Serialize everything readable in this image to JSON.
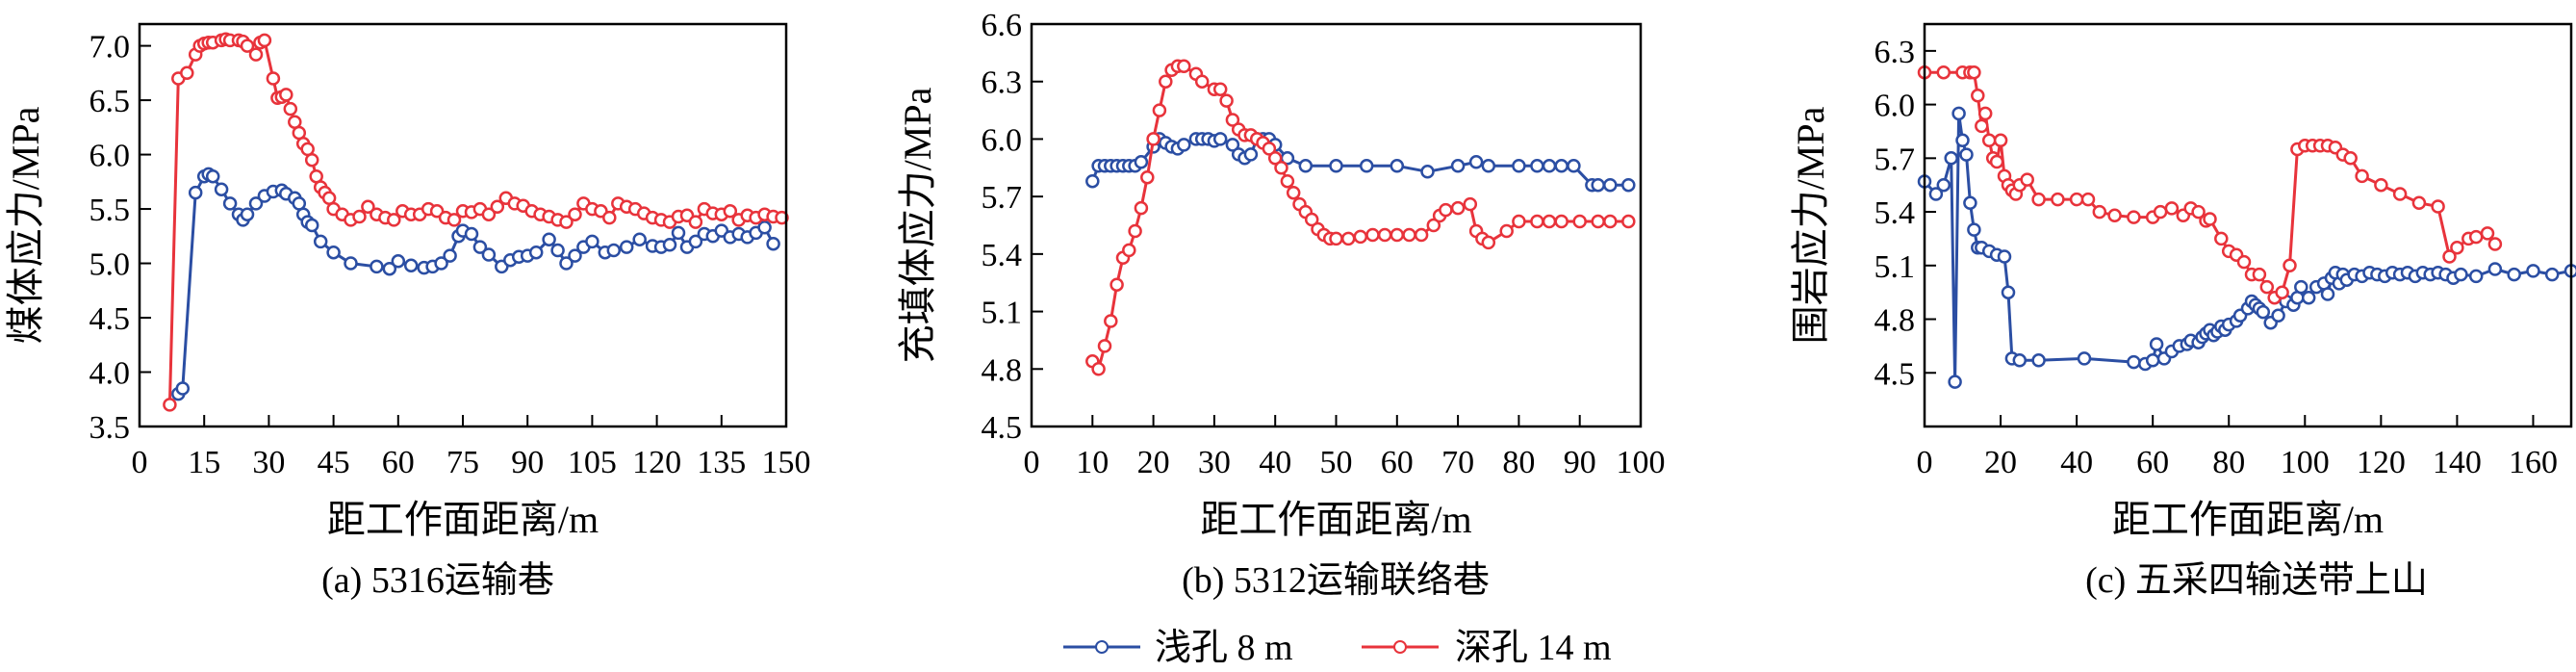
{
  "colors": {
    "shallow": "#2b4ea3",
    "deep": "#e8333b",
    "axis": "#000000"
  },
  "legend": [
    {
      "label": "浅孔 8 m",
      "color": "#2b4ea3"
    },
    {
      "label": "深孔 14 m",
      "color": "#e8333b"
    }
  ],
  "chart_data": [
    {
      "type": "line",
      "caption": "(a) 5316运输巷",
      "xlabel": "距工作面距离/m",
      "ylabel": "煤体应力/MPa",
      "xlim": [
        0,
        150
      ],
      "ylim": [
        3.5,
        7.2
      ],
      "xticks": [
        0,
        15,
        30,
        45,
        60,
        75,
        90,
        105,
        120,
        135,
        150
      ],
      "yticks": [
        3.5,
        4.0,
        4.5,
        5.0,
        5.5,
        6.0,
        6.5,
        7.0
      ],
      "ytick_decimals": 1,
      "series": [
        {
          "name": "浅孔 8 m",
          "x": [
            9,
            10,
            13,
            15,
            16,
            17,
            19,
            21,
            23,
            24,
            25,
            27,
            29,
            31,
            33,
            34,
            36,
            37,
            38,
            39,
            40,
            42,
            45,
            49,
            55,
            58,
            60,
            63,
            66,
            68,
            70,
            72,
            74,
            75,
            77,
            79,
            81,
            84,
            86,
            88,
            90,
            92,
            95,
            97,
            99,
            101,
            103,
            105,
            108,
            110,
            113,
            116,
            119,
            121,
            123,
            125,
            127,
            129,
            131,
            133,
            135,
            137,
            139,
            141,
            143,
            145,
            147
          ],
          "y": [
            3.8,
            3.85,
            5.65,
            5.8,
            5.82,
            5.8,
            5.68,
            5.55,
            5.45,
            5.4,
            5.45,
            5.55,
            5.62,
            5.66,
            5.67,
            5.64,
            5.6,
            5.55,
            5.45,
            5.38,
            5.35,
            5.2,
            5.1,
            5.0,
            4.97,
            4.95,
            5.02,
            4.98,
            4.96,
            4.97,
            5.0,
            5.07,
            5.25,
            5.3,
            5.27,
            5.15,
            5.08,
            4.97,
            5.03,
            5.06,
            5.07,
            5.1,
            5.22,
            5.12,
            5.0,
            5.07,
            5.15,
            5.2,
            5.1,
            5.12,
            5.15,
            5.22,
            5.16,
            5.15,
            5.17,
            5.28,
            5.15,
            5.2,
            5.27,
            5.25,
            5.3,
            5.24,
            5.27,
            5.24,
            5.28,
            5.33,
            5.18
          ]
        },
        {
          "name": "深孔 14 m",
          "x": [
            7,
            9,
            11,
            13,
            14,
            15,
            16,
            17,
            19,
            20,
            21,
            23,
            24,
            25,
            27,
            28,
            29,
            31,
            32,
            33,
            34,
            35,
            36,
            37,
            38,
            39,
            40,
            41,
            42,
            43,
            44,
            45,
            47,
            49,
            51,
            53,
            55,
            57,
            59,
            61,
            63,
            65,
            67,
            69,
            71,
            73,
            75,
            77,
            79,
            81,
            83,
            85,
            87,
            89,
            91,
            93,
            95,
            97,
            99,
            101,
            103,
            105,
            107,
            109,
            111,
            113,
            115,
            117,
            119,
            121,
            123,
            125,
            127,
            129,
            131,
            133,
            135,
            137,
            139,
            141,
            143,
            145,
            147,
            149
          ],
          "y": [
            3.7,
            6.7,
            6.75,
            6.92,
            7.0,
            7.02,
            7.03,
            7.03,
            7.05,
            7.06,
            7.05,
            7.05,
            7.04,
            7.0,
            6.92,
            7.03,
            7.05,
            6.7,
            6.52,
            6.53,
            6.55,
            6.42,
            6.3,
            6.2,
            6.1,
            6.05,
            5.95,
            5.8,
            5.7,
            5.65,
            5.6,
            5.5,
            5.45,
            5.4,
            5.43,
            5.52,
            5.45,
            5.42,
            5.4,
            5.48,
            5.45,
            5.45,
            5.5,
            5.48,
            5.42,
            5.4,
            5.48,
            5.47,
            5.5,
            5.45,
            5.52,
            5.6,
            5.55,
            5.53,
            5.48,
            5.45,
            5.43,
            5.4,
            5.38,
            5.45,
            5.55,
            5.5,
            5.48,
            5.42,
            5.55,
            5.52,
            5.5,
            5.46,
            5.42,
            5.4,
            5.38,
            5.43,
            5.44,
            5.38,
            5.5,
            5.46,
            5.45,
            5.48,
            5.4,
            5.44,
            5.42,
            5.45,
            5.43,
            5.42
          ]
        }
      ]
    },
    {
      "type": "line",
      "caption": "(b) 5312运输联络巷",
      "xlabel": "距工作面距离/m",
      "ylabel": "充填体应力/MPa",
      "xlim": [
        0,
        100
      ],
      "ylim": [
        4.5,
        6.6
      ],
      "xticks": [
        0,
        10,
        20,
        30,
        40,
        50,
        60,
        70,
        80,
        90,
        100
      ],
      "yticks": [
        4.5,
        4.8,
        5.1,
        5.4,
        5.7,
        6.0,
        6.3,
        6.6
      ],
      "ytick_decimals": 1,
      "series": [
        {
          "name": "浅孔 8 m",
          "x": [
            10,
            11,
            12,
            13,
            14,
            15,
            16,
            17,
            18,
            20,
            21,
            22,
            23,
            24,
            25,
            27,
            28,
            29,
            30,
            31,
            33,
            34,
            35,
            36,
            37,
            38,
            39,
            40,
            42,
            45,
            50,
            55,
            60,
            65,
            70,
            73,
            75,
            80,
            83,
            85,
            87,
            89,
            92,
            93,
            95,
            98
          ],
          "y": [
            5.78,
            5.86,
            5.86,
            5.86,
            5.86,
            5.86,
            5.86,
            5.86,
            5.88,
            5.96,
            6.0,
            5.98,
            5.96,
            5.95,
            5.97,
            6.0,
            6.0,
            6.0,
            5.99,
            6.0,
            5.97,
            5.92,
            5.9,
            5.92,
            6.0,
            6.0,
            6.0,
            5.97,
            5.9,
            5.86,
            5.86,
            5.86,
            5.86,
            5.83,
            5.86,
            5.88,
            5.86,
            5.86,
            5.86,
            5.86,
            5.86,
            5.86,
            5.76,
            5.76,
            5.76,
            5.76
          ]
        },
        {
          "name": "深孔 14 m",
          "x": [
            10,
            11,
            12,
            13,
            14,
            15,
            16,
            17,
            18,
            19,
            20,
            21,
            22,
            23,
            24,
            25,
            27,
            28,
            30,
            31,
            32,
            33,
            34,
            35,
            36,
            37,
            38,
            39,
            40,
            41,
            42,
            43,
            44,
            45,
            46,
            47,
            48,
            49,
            50,
            52,
            54,
            56,
            58,
            60,
            62,
            64,
            66,
            67,
            68,
            70,
            72,
            73,
            74,
            75,
            78,
            80,
            83,
            85,
            87,
            90,
            93,
            95,
            98
          ],
          "y": [
            4.84,
            4.8,
            4.92,
            5.05,
            5.24,
            5.38,
            5.42,
            5.52,
            5.64,
            5.8,
            6.0,
            6.15,
            6.3,
            6.36,
            6.38,
            6.38,
            6.34,
            6.3,
            6.26,
            6.26,
            6.2,
            6.1,
            6.05,
            6.02,
            6.02,
            6.0,
            5.98,
            5.95,
            5.9,
            5.85,
            5.78,
            5.72,
            5.66,
            5.62,
            5.58,
            5.53,
            5.5,
            5.48,
            5.48,
            5.48,
            5.49,
            5.5,
            5.5,
            5.5,
            5.5,
            5.5,
            5.55,
            5.6,
            5.63,
            5.64,
            5.66,
            5.52,
            5.48,
            5.46,
            5.52,
            5.57,
            5.57,
            5.57,
            5.57,
            5.57,
            5.57,
            5.57,
            5.57
          ]
        }
      ]
    },
    {
      "type": "line",
      "caption": "(c) 五采四输送带上山",
      "xlabel": "距工作面距离/m",
      "ylabel": "围岩应力/MPa",
      "xlim": [
        0,
        170
      ],
      "ylim": [
        4.2,
        6.45
      ],
      "xticks": [
        0,
        20,
        40,
        60,
        80,
        100,
        120,
        140,
        160
      ],
      "yticks": [
        4.5,
        4.8,
        5.1,
        5.4,
        5.7,
        6.0,
        6.3
      ],
      "ytick_decimals": 1,
      "series": [
        {
          "name": "浅孔 8 m",
          "x": [
            0,
            3,
            5,
            7,
            8,
            9,
            10,
            11,
            12,
            13,
            14,
            15,
            17,
            19,
            21,
            22,
            23,
            25,
            30,
            42,
            55,
            58,
            60,
            61,
            63,
            65,
            67,
            69,
            70,
            72,
            73,
            74,
            75,
            76,
            77,
            78,
            79,
            80,
            82,
            83,
            85,
            86,
            87,
            88,
            89,
            91,
            93,
            95,
            97,
            98,
            99,
            101,
            103,
            105,
            106,
            107,
            108,
            109,
            110,
            111,
            113,
            115,
            117,
            119,
            121,
            123,
            125,
            127,
            129,
            131,
            133,
            135,
            137,
            139,
            141,
            145,
            150,
            155,
            160,
            165,
            170
          ],
          "y": [
            5.57,
            5.5,
            5.55,
            5.7,
            4.45,
            5.95,
            5.8,
            5.72,
            5.45,
            5.3,
            5.2,
            5.2,
            5.18,
            5.16,
            5.15,
            4.95,
            4.58,
            4.57,
            4.57,
            4.58,
            4.56,
            4.55,
            4.57,
            4.66,
            4.58,
            4.62,
            4.65,
            4.66,
            4.68,
            4.67,
            4.7,
            4.72,
            4.74,
            4.71,
            4.73,
            4.76,
            4.74,
            4.77,
            4.79,
            4.82,
            4.86,
            4.9,
            4.88,
            4.86,
            4.84,
            4.78,
            4.82,
            4.9,
            4.88,
            4.92,
            4.98,
            4.92,
            4.98,
            5.0,
            4.94,
            5.03,
            5.06,
            5.0,
            5.05,
            5.02,
            5.05,
            5.04,
            5.06,
            5.05,
            5.04,
            5.06,
            5.05,
            5.06,
            5.04,
            5.06,
            5.05,
            5.06,
            5.05,
            5.03,
            5.05,
            5.04,
            5.08,
            5.05,
            5.07,
            5.05,
            5.07
          ]
        },
        {
          "name": "深孔 14 m",
          "x": [
            0,
            5,
            10,
            12,
            13,
            14,
            15,
            16,
            17,
            18,
            19,
            20,
            21,
            22,
            23,
            24,
            25,
            27,
            30,
            35,
            40,
            43,
            46,
            50,
            55,
            60,
            62,
            65,
            68,
            70,
            72,
            74,
            75,
            78,
            80,
            82,
            84,
            86,
            88,
            90,
            92,
            94,
            96,
            98,
            100,
            102,
            104,
            106,
            108,
            110,
            112,
            115,
            120,
            125,
            130,
            135,
            138,
            140,
            143,
            145,
            148,
            150
          ],
          "y": [
            6.18,
            6.18,
            6.18,
            6.18,
            6.18,
            6.05,
            5.88,
            5.95,
            5.8,
            5.7,
            5.68,
            5.8,
            5.6,
            5.55,
            5.52,
            5.5,
            5.55,
            5.58,
            5.47,
            5.47,
            5.47,
            5.47,
            5.4,
            5.38,
            5.37,
            5.37,
            5.4,
            5.42,
            5.38,
            5.42,
            5.4,
            5.35,
            5.36,
            5.25,
            5.18,
            5.16,
            5.12,
            5.05,
            5.05,
            4.98,
            4.92,
            4.95,
            5.1,
            5.75,
            5.77,
            5.77,
            5.77,
            5.77,
            5.76,
            5.72,
            5.7,
            5.6,
            5.55,
            5.5,
            5.45,
            5.43,
            5.15,
            5.2,
            5.25,
            5.26,
            5.28,
            5.22
          ]
        }
      ]
    }
  ]
}
